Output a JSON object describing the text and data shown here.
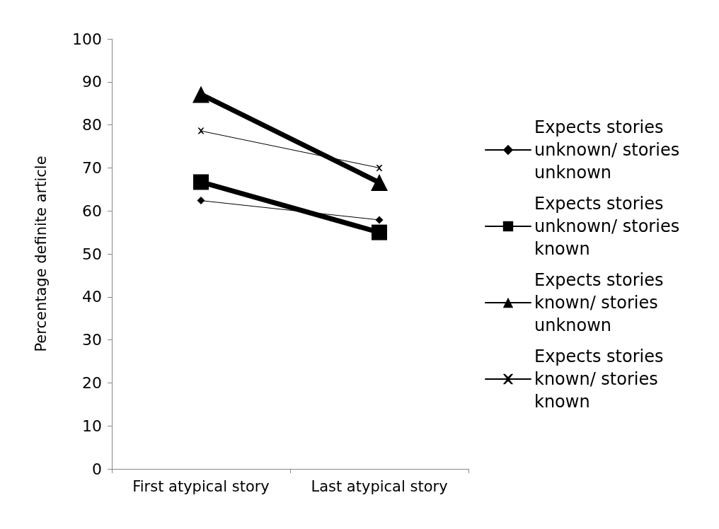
{
  "chart_data": {
    "type": "line",
    "ylabel": "Percentage definite article",
    "categories": [
      "First atypical story",
      "Last atypical story"
    ],
    "series": [
      {
        "name": "Expects stories unknown/ stories unknown",
        "color": "#000000",
        "marker": "diamond",
        "values": [
          62.4,
          57.9
        ]
      },
      {
        "name": "Expects stories unknown/ stories known",
        "color": "#000000",
        "marker": "square",
        "values": [
          66.7,
          55.0
        ]
      },
      {
        "name": "Expects stories known/ stories unknown",
        "color": "#000000",
        "marker": "triangle",
        "values": [
          87.1,
          66.6
        ]
      },
      {
        "name": "Expects stories known/ stories known",
        "color": "#000000",
        "marker": "cross",
        "values": [
          78.6,
          70.0
        ]
      }
    ],
    "ylim": [
      0,
      100
    ],
    "yticks": [
      0,
      10,
      20,
      30,
      40,
      50,
      60,
      70,
      80,
      90,
      100
    ],
    "grid": false,
    "legend": "right",
    "line_style": "solid"
  }
}
